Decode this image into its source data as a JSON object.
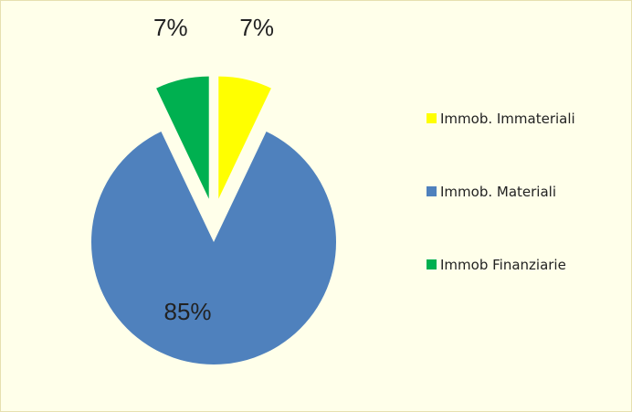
{
  "chart_data": {
    "type": "pie",
    "categories": [
      "Immob. Immateriali",
      "Immob. Materiali",
      "Immob Finanziarie"
    ],
    "values": [
      7,
      85,
      7
    ],
    "value_labels": [
      "7%",
      "85%",
      "7%"
    ],
    "colors": [
      "#ffff00",
      "#4f81bd",
      "#00b050"
    ],
    "legend": "right"
  }
}
